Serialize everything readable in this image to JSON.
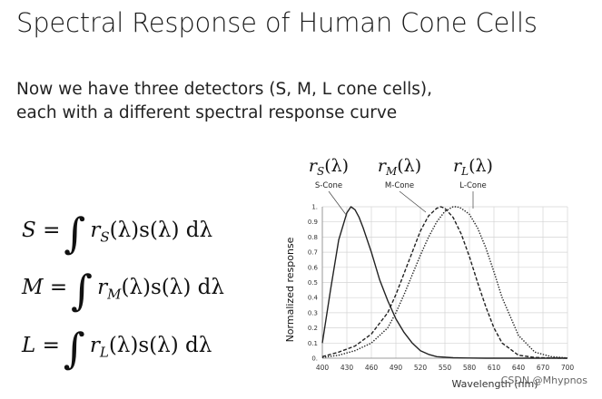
{
  "slide": {
    "title": "Spectral Response of Human Cone Cells",
    "paragraph": [
      "Now we have three detectors (S, M, L cone cells),",
      "each with a different spectral response curve"
    ],
    "watermark": "CSDN @Mhypnos"
  },
  "equations": [
    {
      "lhs": "S",
      "r_sub": "S",
      "rest": "(λ)s(λ) dλ"
    },
    {
      "lhs": "M",
      "r_sub": "M",
      "rest": "(λ)s(λ) dλ"
    },
    {
      "lhs": "L",
      "r_sub": "L",
      "rest": "(λ)s(λ) dλ"
    }
  ],
  "chart_data": {
    "type": "line",
    "xlabel": "Wavelength (nm)",
    "ylabel": "Normalized response",
    "xlim": [
      400,
      700
    ],
    "ylim": [
      0,
      1
    ],
    "x_ticks": [
      400,
      430,
      460,
      490,
      520,
      550,
      580,
      610,
      640,
      670,
      700
    ],
    "y_ticks": [
      0,
      0.1,
      0.2,
      0.3,
      0.4,
      0.5,
      0.6,
      0.7,
      0.8,
      0.9,
      1
    ],
    "y_tick_labels": [
      "0.",
      "0.1",
      "0.2",
      "0.3",
      "0.4",
      "0.5",
      "0.6",
      "0.7",
      "0.8",
      "0.9",
      "1."
    ],
    "grid": true,
    "series": [
      {
        "name": "S-Cone",
        "formula": "rS(λ)",
        "style": "solid",
        "x": [
          400,
          410,
          420,
          430,
          435,
          440,
          445,
          450,
          460,
          470,
          480,
          490,
          500,
          510,
          520,
          530,
          540,
          560,
          580,
          600,
          700
        ],
        "y": [
          0.1,
          0.45,
          0.78,
          0.96,
          1.0,
          0.98,
          0.93,
          0.86,
          0.7,
          0.52,
          0.38,
          0.26,
          0.17,
          0.1,
          0.05,
          0.025,
          0.01,
          0.003,
          0.001,
          0,
          0
        ]
      },
      {
        "name": "M-Cone",
        "formula": "rM(λ)",
        "style": "dashed",
        "x": [
          400,
          420,
          440,
          460,
          480,
          490,
          500,
          510,
          520,
          530,
          540,
          545,
          550,
          560,
          570,
          580,
          590,
          600,
          610,
          620,
          640,
          660,
          680,
          700
        ],
        "y": [
          0.01,
          0.04,
          0.08,
          0.16,
          0.3,
          0.42,
          0.56,
          0.7,
          0.84,
          0.94,
          0.99,
          1.0,
          0.99,
          0.93,
          0.82,
          0.67,
          0.5,
          0.34,
          0.2,
          0.1,
          0.02,
          0.005,
          0.001,
          0
        ]
      },
      {
        "name": "L-Cone",
        "formula": "rL(λ)",
        "style": "dotted",
        "x": [
          400,
          420,
          440,
          460,
          480,
          490,
          500,
          510,
          520,
          530,
          540,
          550,
          560,
          565,
          570,
          580,
          590,
          600,
          610,
          620,
          640,
          660,
          680,
          700
        ],
        "y": [
          0.005,
          0.02,
          0.05,
          0.1,
          0.2,
          0.3,
          0.42,
          0.55,
          0.68,
          0.8,
          0.9,
          0.97,
          1.0,
          1.0,
          0.99,
          0.95,
          0.86,
          0.73,
          0.57,
          0.4,
          0.15,
          0.04,
          0.01,
          0.002
        ]
      }
    ]
  }
}
